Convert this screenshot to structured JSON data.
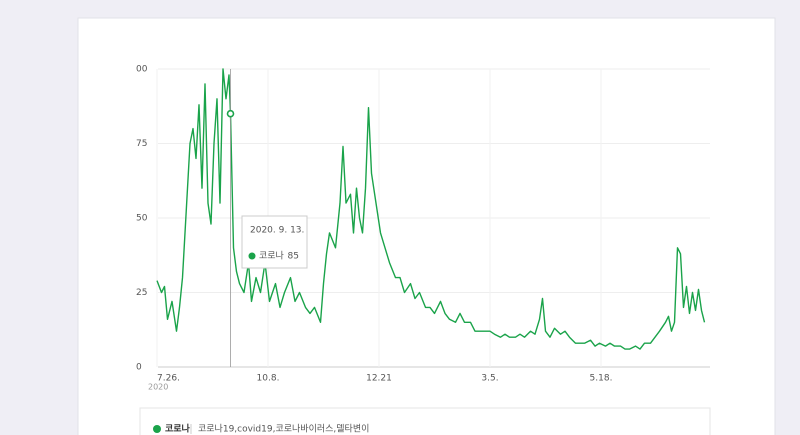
{
  "chart_data": {
    "type": "line",
    "grid": true,
    "xlim": [
      0,
      366
    ],
    "ylim": [
      0,
      100
    ],
    "yticks": [
      {
        "value": 100,
        "label": "00"
      },
      75,
      50,
      25,
      0
    ],
    "xticks": [
      {
        "value": 0,
        "label": "7.26."
      },
      {
        "value": 74,
        "label": "10.8."
      },
      {
        "value": 148,
        "label": "12.21"
      },
      {
        "value": 222,
        "label": "3.5."
      },
      {
        "value": 296,
        "label": "5.18."
      }
    ],
    "x_year_label": "2020",
    "series": [
      {
        "name": "코로나",
        "color": "#1aa34a",
        "x": [
          0,
          3,
          5,
          7,
          10,
          13,
          15,
          17,
          19,
          22,
          24,
          26,
          28,
          30,
          32,
          34,
          36,
          38,
          40,
          42,
          44,
          46,
          48,
          49,
          51,
          53,
          55,
          58,
          61,
          63,
          66,
          69,
          72,
          75,
          79,
          82,
          85,
          89,
          92,
          95,
          99,
          102,
          105,
          109,
          111,
          113,
          115,
          119,
          122,
          124,
          126,
          129,
          131,
          133,
          135,
          137,
          139,
          141,
          143,
          146,
          149,
          152,
          155,
          159,
          162,
          165,
          169,
          172,
          175,
          179,
          182,
          185,
          189,
          192,
          195,
          199,
          202,
          205,
          209,
          212,
          215,
          219,
          222,
          225,
          229,
          232,
          235,
          239,
          242,
          245,
          249,
          252,
          255,
          257,
          259,
          262,
          265,
          269,
          272,
          275,
          279,
          282,
          285,
          289,
          292,
          295,
          299,
          302,
          305,
          309,
          312,
          315,
          319,
          322,
          325,
          329,
          332,
          335,
          339,
          341,
          343,
          345,
          347,
          349,
          351,
          353,
          355,
          357,
          359,
          361,
          363,
          365
        ],
        "values": [
          29,
          25,
          27,
          16,
          22,
          12,
          20,
          30,
          48,
          75,
          80,
          70,
          88,
          60,
          95,
          55,
          48,
          75,
          90,
          55,
          100,
          90,
          98,
          85,
          40,
          32,
          28,
          25,
          35,
          22,
          30,
          25,
          35,
          22,
          28,
          20,
          25,
          30,
          22,
          25,
          20,
          18,
          20,
          15,
          28,
          38,
          45,
          40,
          55,
          74,
          55,
          58,
          45,
          60,
          50,
          45,
          60,
          87,
          65,
          55,
          45,
          40,
          35,
          30,
          30,
          25,
          28,
          23,
          25,
          20,
          20,
          18,
          22,
          18,
          16,
          15,
          18,
          15,
          15,
          12,
          12,
          12,
          12,
          11,
          10,
          11,
          10,
          10,
          11,
          10,
          12,
          11,
          16,
          23,
          12,
          10,
          13,
          11,
          12,
          10,
          8,
          8,
          8,
          9,
          7,
          8,
          7,
          8,
          7,
          7,
          6,
          6,
          7,
          6,
          8,
          8,
          10,
          12,
          15,
          17,
          12,
          15,
          40,
          38,
          20,
          27,
          18,
          25,
          19,
          26,
          19,
          15
        ]
      }
    ],
    "tooltip": {
      "x": 49,
      "label": "2020. 9. 13.",
      "value": 85
    },
    "legend_detail": "코로나19,covid19,코로나바이러스,델타변이"
  }
}
